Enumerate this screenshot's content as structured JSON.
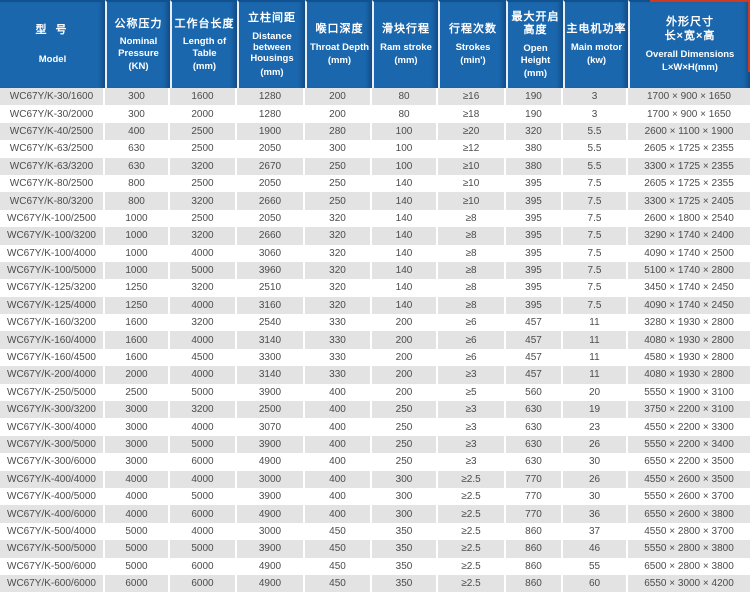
{
  "colors": {
    "header_blue": "#1b67ae",
    "header_blue_dark": "#11518f",
    "stripe_gray": "#e3e3e3",
    "row_white": "#ffffff",
    "header_text": "#ffffff",
    "body_text": "#4c4c4c",
    "edge_artifact_red": "#cf3a22"
  },
  "chart_data": {
    "type": "table",
    "title": "WC67Y/K press brake specification table",
    "legend_position": "none",
    "grid": "striped-rows",
    "columns": [
      {
        "key": "model",
        "zh": "型 号",
        "en": "Model",
        "unit": ""
      },
      {
        "key": "nominal-pressure",
        "zh": "公称压力",
        "en": "Nominal Pressure",
        "unit": "(KN)"
      },
      {
        "key": "table-length",
        "zh": "工作台长度",
        "en": "Length of Table",
        "unit": "(mm)"
      },
      {
        "key": "housing-distance",
        "zh": "立柱间距",
        "en": "Distance between Housings",
        "unit": "(mm)"
      },
      {
        "key": "throat-depth",
        "zh": "喉口深度",
        "en": "Throat Depth",
        "unit": "(mm)"
      },
      {
        "key": "ram-stroke",
        "zh": "滑块行程",
        "en": "Ram stroke",
        "unit": "(mm)"
      },
      {
        "key": "strokes",
        "zh": "行程次数",
        "en": "Strokes",
        "unit": "(min')"
      },
      {
        "key": "open-height",
        "zh": "最大开启高度",
        "en": "Open Height",
        "unit": "(mm)"
      },
      {
        "key": "main-motor",
        "zh": "主电机功率",
        "en": "Main motor",
        "unit": "(kw)"
      },
      {
        "key": "dimensions",
        "zh": "外形尺寸\n长×宽×高",
        "en": "Overall Dimensions",
        "unit": "L×W×H(mm)"
      }
    ],
    "rows": [
      [
        "WC67Y/K-30/1600",
        "300",
        "1600",
        "1280",
        "200",
        "80",
        "≥16",
        "190",
        "3",
        "1700 × 900 × 1650"
      ],
      [
        "WC67Y/K-30/2000",
        "300",
        "2000",
        "1280",
        "200",
        "80",
        "≥18",
        "190",
        "3",
        "1700 × 900 × 1650"
      ],
      [
        "WC67Y/K-40/2500",
        "400",
        "2500",
        "1900",
        "280",
        "100",
        "≥20",
        "320",
        "5.5",
        "2600 × 1100 × 1900"
      ],
      [
        "WC67Y/K-63/2500",
        "630",
        "2500",
        "2050",
        "300",
        "100",
        "≥12",
        "380",
        "5.5",
        "2605 × 1725 × 2355"
      ],
      [
        "WC67Y/K-63/3200",
        "630",
        "3200",
        "2670",
        "250",
        "100",
        "≥10",
        "380",
        "5.5",
        "3300 × 1725 × 2355"
      ],
      [
        "WC67Y/K-80/2500",
        "800",
        "2500",
        "2050",
        "250",
        "140",
        "≥10",
        "395",
        "7.5",
        "2605 × 1725 × 2355"
      ],
      [
        "WC67Y/K-80/3200",
        "800",
        "3200",
        "2660",
        "250",
        "140",
        "≥10",
        "395",
        "7.5",
        "3300 × 1725 × 2405"
      ],
      [
        "WC67Y/K-100/2500",
        "1000",
        "2500",
        "2050",
        "320",
        "140",
        "≥8",
        "395",
        "7.5",
        "2600 × 1800 × 2540"
      ],
      [
        "WC67Y/K-100/3200",
        "1000",
        "3200",
        "2660",
        "320",
        "140",
        "≥8",
        "395",
        "7.5",
        "3290 × 1740 × 2400"
      ],
      [
        "WC67Y/K-100/4000",
        "1000",
        "4000",
        "3060",
        "320",
        "140",
        "≥8",
        "395",
        "7.5",
        "4090 × 1740 × 2500"
      ],
      [
        "WC67Y/K-100/5000",
        "1000",
        "5000",
        "3960",
        "320",
        "140",
        "≥8",
        "395",
        "7.5",
        "5100 × 1740 × 2800"
      ],
      [
        "WC67Y/K-125/3200",
        "1250",
        "3200",
        "2510",
        "320",
        "140",
        "≥8",
        "395",
        "7.5",
        "3450 × 1740 × 2450"
      ],
      [
        "WC67Y/K-125/4000",
        "1250",
        "4000",
        "3160",
        "320",
        "140",
        "≥8",
        "395",
        "7.5",
        "4090 × 1740 × 2450"
      ],
      [
        "WC67Y/K-160/3200",
        "1600",
        "3200",
        "2540",
        "330",
        "200",
        "≥6",
        "457",
        "11",
        "3280 × 1930 × 2800"
      ],
      [
        "WC67Y/K-160/4000",
        "1600",
        "4000",
        "3140",
        "330",
        "200",
        "≥6",
        "457",
        "11",
        "4080 × 1930 × 2800"
      ],
      [
        "WC67Y/K-160/4500",
        "1600",
        "4500",
        "3300",
        "330",
        "200",
        "≥6",
        "457",
        "11",
        "4580 × 1930 × 2800"
      ],
      [
        "WC67Y/K-200/4000",
        "2000",
        "4000",
        "3140",
        "330",
        "200",
        "≥3",
        "457",
        "11",
        "4080 × 1930 × 2800"
      ],
      [
        "WC67Y/K-250/5000",
        "2500",
        "5000",
        "3900",
        "400",
        "200",
        "≥5",
        "560",
        "20",
        "5550 × 1900 × 3100"
      ],
      [
        "WC67Y/K-300/3200",
        "3000",
        "3200",
        "2500",
        "400",
        "250",
        "≥3",
        "630",
        "19",
        "3750 × 2200 × 3100"
      ],
      [
        "WC67Y/K-300/4000",
        "3000",
        "4000",
        "3070",
        "400",
        "250",
        "≥3",
        "630",
        "23",
        "4550 × 2200 × 3300"
      ],
      [
        "WC67Y/K-300/5000",
        "3000",
        "5000",
        "3900",
        "400",
        "250",
        "≥3",
        "630",
        "26",
        "5550 × 2200 × 3400"
      ],
      [
        "WC67Y/K-300/6000",
        "3000",
        "6000",
        "4900",
        "400",
        "250",
        "≥3",
        "630",
        "30",
        "6550 × 2200 × 3500"
      ],
      [
        "WC67Y/K-400/4000",
        "4000",
        "4000",
        "3000",
        "400",
        "300",
        "≥2.5",
        "770",
        "26",
        "4550 × 2600 × 3500"
      ],
      [
        "WC67Y/K-400/5000",
        "4000",
        "5000",
        "3900",
        "400",
        "300",
        "≥2.5",
        "770",
        "30",
        "5550 × 2600 × 3700"
      ],
      [
        "WC67Y/K-400/6000",
        "4000",
        "6000",
        "4900",
        "400",
        "300",
        "≥2.5",
        "770",
        "36",
        "6550 × 2600 × 3800"
      ],
      [
        "WC67Y/K-500/4000",
        "5000",
        "4000",
        "3000",
        "450",
        "350",
        "≥2.5",
        "860",
        "37",
        "4550 × 2800 × 3700"
      ],
      [
        "WC67Y/K-500/5000",
        "5000",
        "5000",
        "3900",
        "450",
        "350",
        "≥2.5",
        "860",
        "46",
        "5550 × 2800 × 3800"
      ],
      [
        "WC67Y/K-500/6000",
        "5000",
        "6000",
        "4900",
        "450",
        "350",
        "≥2.5",
        "860",
        "55",
        "6500 × 2800 × 3800"
      ],
      [
        "WC67Y/K-600/6000",
        "6000",
        "6000",
        "4900",
        "450",
        "350",
        "≥2.5",
        "860",
        "60",
        "6550 × 3000 × 4200"
      ]
    ]
  }
}
